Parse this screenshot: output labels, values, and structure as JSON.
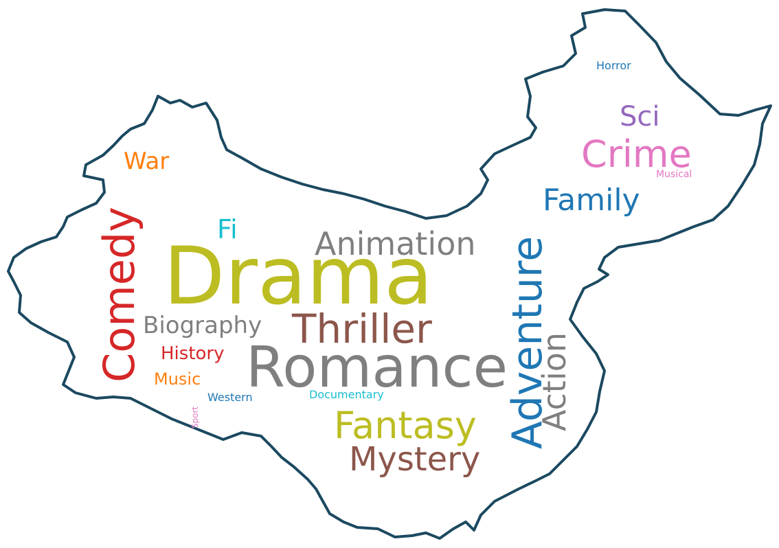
{
  "colors": {
    "background": "#ffffff",
    "outline": "#1b4960"
  },
  "words": [
    {
      "text": "Drama",
      "color": "#bcbd22",
      "orientation": "horizontal"
    },
    {
      "text": "Romance",
      "color": "#7f7f7f",
      "orientation": "horizontal"
    },
    {
      "text": "Comedy",
      "color": "#d62728",
      "orientation": "vertical"
    },
    {
      "text": "Adventure",
      "color": "#1f77b4",
      "orientation": "vertical"
    },
    {
      "text": "Thriller",
      "color": "#8c564b",
      "orientation": "horizontal"
    },
    {
      "text": "Animation",
      "color": "#7f7f7f",
      "orientation": "horizontal"
    },
    {
      "text": "Action",
      "color": "#7f7f7f",
      "orientation": "vertical"
    },
    {
      "text": "Fantasy",
      "color": "#bcbd22",
      "orientation": "horizontal"
    },
    {
      "text": "Mystery",
      "color": "#8c564b",
      "orientation": "horizontal"
    },
    {
      "text": "Crime",
      "color": "#e377c2",
      "orientation": "horizontal"
    },
    {
      "text": "Family",
      "color": "#1f77b4",
      "orientation": "horizontal"
    },
    {
      "text": "Sci",
      "color": "#9467bd",
      "orientation": "horizontal"
    },
    {
      "text": "Biography",
      "color": "#7f7f7f",
      "orientation": "horizontal"
    },
    {
      "text": "War",
      "color": "#ff7f0e",
      "orientation": "horizontal"
    },
    {
      "text": "Fi",
      "color": "#17becf",
      "orientation": "horizontal"
    },
    {
      "text": "History",
      "color": "#d62728",
      "orientation": "horizontal"
    },
    {
      "text": "Music",
      "color": "#ff7f0e",
      "orientation": "horizontal"
    },
    {
      "text": "Western",
      "color": "#1f77b4",
      "orientation": "horizontal"
    },
    {
      "text": "Documentary",
      "color": "#17becf",
      "orientation": "horizontal"
    },
    {
      "text": "Horror",
      "color": "#1f77b4",
      "orientation": "horizontal"
    },
    {
      "text": "Musical",
      "color": "#e377c2",
      "orientation": "horizontal"
    },
    {
      "text": "Sport",
      "color": "#e377c2",
      "orientation": "vertical"
    }
  ]
}
